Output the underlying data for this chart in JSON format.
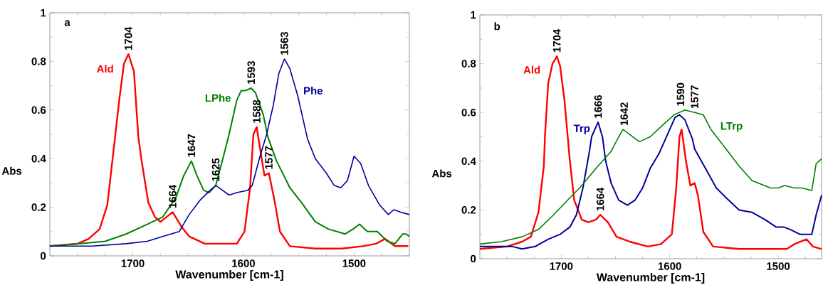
{
  "chart_data": [
    {
      "type": "line",
      "xlabel": "Wavenumber [cm-1]",
      "ylabel": "Abs",
      "xlim": [
        1775,
        1450
      ],
      "ylim": [
        0,
        1
      ],
      "xticks": [
        {
          "value": 1750,
          "label": null
        },
        {
          "value": 1725,
          "label": null
        },
        1700,
        {
          "value": 1675,
          "label": null
        },
        {
          "value": 1650,
          "label": null
        },
        {
          "value": 1625,
          "label": null
        },
        1600,
        {
          "value": 1575,
          "label": null
        },
        {
          "value": 1550,
          "label": null
        },
        {
          "value": 1525,
          "label": null
        },
        1500,
        {
          "value": 1475,
          "label": null
        }
      ],
      "yticks": [
        0,
        {
          "value": 0.1,
          "label": null
        },
        0.2,
        {
          "value": 0.3,
          "label": null
        },
        0.4,
        {
          "value": 0.5,
          "label": null
        },
        0.6,
        {
          "value": 0.7,
          "label": null
        },
        0.8,
        {
          "value": 0.9,
          "label": null
        },
        1
      ],
      "series": [
        {
          "name": "Ald",
          "color": "#ff0000",
          "x": [
            1775,
            1750,
            1740,
            1730,
            1723,
            1716,
            1712,
            1708,
            1704,
            1699,
            1695,
            1692,
            1686,
            1680,
            1675,
            1664,
            1656,
            1649,
            1635,
            1615,
            1606,
            1599,
            1594,
            1591,
            1588,
            1587,
            1581,
            1577,
            1572,
            1567,
            1558,
            1535,
            1511,
            1492,
            1480,
            1472,
            1463,
            1451
          ],
          "values": [
            0.04,
            0.05,
            0.07,
            0.11,
            0.21,
            0.49,
            0.65,
            0.79,
            0.83,
            0.76,
            0.49,
            0.39,
            0.22,
            0.16,
            0.14,
            0.18,
            0.12,
            0.08,
            0.05,
            0.05,
            0.05,
            0.1,
            0.28,
            0.5,
            0.53,
            0.5,
            0.33,
            0.34,
            0.23,
            0.1,
            0.04,
            0.03,
            0.03,
            0.04,
            0.05,
            0.07,
            0.04,
            0.04
          ]
        },
        {
          "name": "LPhe",
          "color": "#008000",
          "x": [
            1775,
            1749,
            1725,
            1706,
            1687,
            1673,
            1661,
            1654,
            1647,
            1642,
            1636,
            1631,
            1625,
            1618,
            1613,
            1611,
            1606,
            1602,
            1598,
            1593,
            1589,
            1582,
            1578,
            1570,
            1558,
            1546,
            1535,
            1523,
            1508,
            1501,
            1495,
            1488,
            1479,
            1470,
            1463,
            1456,
            1453,
            1450
          ],
          "values": [
            0.04,
            0.05,
            0.06,
            0.09,
            0.13,
            0.16,
            0.24,
            0.33,
            0.39,
            0.33,
            0.27,
            0.26,
            0.29,
            0.41,
            0.5,
            0.54,
            0.64,
            0.68,
            0.68,
            0.69,
            0.67,
            0.58,
            0.49,
            0.39,
            0.28,
            0.21,
            0.14,
            0.11,
            0.09,
            0.11,
            0.13,
            0.1,
            0.1,
            0.06,
            0.05,
            0.09,
            0.09,
            0.08
          ]
        },
        {
          "name": "Phe",
          "color": "#000099",
          "x": [
            1775,
            1737,
            1706,
            1687,
            1673,
            1658,
            1649,
            1639,
            1630,
            1625,
            1619,
            1613,
            1606,
            1596,
            1592,
            1585,
            1579,
            1573,
            1568,
            1563,
            1558,
            1551,
            1542,
            1535,
            1525,
            1518,
            1512,
            1506,
            1500,
            1494,
            1487,
            1477,
            1469,
            1464,
            1458,
            1450
          ],
          "values": [
            0.04,
            0.04,
            0.05,
            0.06,
            0.08,
            0.1,
            0.17,
            0.23,
            0.27,
            0.29,
            0.27,
            0.25,
            0.26,
            0.27,
            0.29,
            0.41,
            0.5,
            0.62,
            0.75,
            0.81,
            0.77,
            0.66,
            0.48,
            0.4,
            0.34,
            0.29,
            0.28,
            0.31,
            0.41,
            0.38,
            0.29,
            0.21,
            0.17,
            0.19,
            0.18,
            0.17
          ]
        }
      ],
      "annotations": [
        "a",
        {
          "text": "1704",
          "x": 1704,
          "y": 0.83
        },
        {
          "text": "1664",
          "x": 1664,
          "y": 0.18
        },
        {
          "text": "1647",
          "x": 1647,
          "y": 0.39
        },
        {
          "text": "1625",
          "x": 1625,
          "y": 0.29
        },
        {
          "text": "1593",
          "x": 1593,
          "y": 0.69
        },
        {
          "text": "1588",
          "x": 1588,
          "y": 0.53
        },
        {
          "text": "1577",
          "x": 1577,
          "y": 0.34
        },
        {
          "text": "1563",
          "x": 1563,
          "y": 0.81
        }
      ]
    },
    {
      "type": "line",
      "xlabel": "Wavenumber [cm-1]",
      "ylabel": "Abs",
      "xlim": [
        1775,
        1460
      ],
      "ylim": [
        0,
        1
      ],
      "xticks": [
        {
          "value": 1750,
          "label": null
        },
        {
          "value": 1725,
          "label": null
        },
        1700,
        {
          "value": 1675,
          "label": null
        },
        {
          "value": 1650,
          "label": null
        },
        {
          "value": 1625,
          "label": null
        },
        1600,
        {
          "value": 1575,
          "label": null
        },
        {
          "value": 1550,
          "label": null
        },
        {
          "value": 1525,
          "label": null
        },
        1500,
        {
          "value": 1475,
          "label": null
        }
      ],
      "yticks": [
        0,
        {
          "value": 0.1,
          "label": null
        },
        0.2,
        {
          "value": 0.3,
          "label": null
        },
        0.4,
        {
          "value": 0.5,
          "label": null
        },
        0.6,
        {
          "value": 0.7,
          "label": null
        },
        0.8,
        {
          "value": 0.9,
          "label": null
        },
        1
      ],
      "series": [
        {
          "name": "Ald",
          "color": "#ff0000",
          "x": [
            1775,
            1750,
            1736,
            1728,
            1721,
            1716,
            1715,
            1712,
            1708,
            1704,
            1701,
            1697,
            1694,
            1692,
            1688,
            1681,
            1675,
            1668,
            1664,
            1657,
            1649,
            1637,
            1620,
            1608,
            1598,
            1594,
            1591,
            1589,
            1585,
            1581,
            1577,
            1574,
            1569,
            1560,
            1536,
            1512,
            1492,
            1485,
            1474,
            1468,
            1460
          ],
          "values": [
            0.04,
            0.05,
            0.07,
            0.09,
            0.19,
            0.38,
            0.5,
            0.72,
            0.8,
            0.83,
            0.79,
            0.65,
            0.5,
            0.4,
            0.24,
            0.16,
            0.15,
            0.16,
            0.18,
            0.15,
            0.09,
            0.07,
            0.05,
            0.06,
            0.1,
            0.29,
            0.5,
            0.53,
            0.4,
            0.3,
            0.31,
            0.26,
            0.11,
            0.05,
            0.04,
            0.04,
            0.04,
            0.06,
            0.08,
            0.05,
            0.04
          ]
        },
        {
          "name": "Trp",
          "color": "#000099",
          "x": [
            1775,
            1745,
            1736,
            1724,
            1712,
            1701,
            1692,
            1686,
            1680,
            1674,
            1672,
            1666,
            1662,
            1659,
            1654,
            1647,
            1639,
            1632,
            1625,
            1618,
            1610,
            1606,
            1601,
            1595,
            1591,
            1586,
            1579,
            1577,
            1567,
            1557,
            1548,
            1536,
            1524,
            1512,
            1502,
            1495,
            1489,
            1480,
            1469,
            1465,
            1460
          ],
          "values": [
            0.05,
            0.05,
            0.04,
            0.05,
            0.08,
            0.1,
            0.13,
            0.18,
            0.29,
            0.44,
            0.5,
            0.56,
            0.5,
            0.4,
            0.31,
            0.24,
            0.22,
            0.24,
            0.29,
            0.37,
            0.43,
            0.47,
            0.52,
            0.58,
            0.59,
            0.57,
            0.49,
            0.45,
            0.37,
            0.29,
            0.25,
            0.2,
            0.19,
            0.16,
            0.13,
            0.13,
            0.12,
            0.1,
            0.1,
            0.18,
            0.26
          ]
        },
        {
          "name": "LTrp",
          "color": "#008000",
          "x": [
            1775,
            1755,
            1736,
            1721,
            1707,
            1692,
            1683,
            1668,
            1654,
            1647,
            1643,
            1637,
            1628,
            1618,
            1606,
            1596,
            1586,
            1577,
            1569,
            1562,
            1555,
            1548,
            1536,
            1524,
            1507,
            1500,
            1494,
            1485,
            1478,
            1469,
            1465,
            1460
          ],
          "values": [
            0.06,
            0.07,
            0.09,
            0.12,
            0.18,
            0.25,
            0.29,
            0.37,
            0.44,
            0.5,
            0.53,
            0.51,
            0.48,
            0.5,
            0.55,
            0.59,
            0.61,
            0.6,
            0.59,
            0.53,
            0.49,
            0.45,
            0.38,
            0.32,
            0.29,
            0.29,
            0.3,
            0.29,
            0.29,
            0.28,
            0.39,
            0.41
          ]
        }
      ],
      "annotations": [
        "b",
        {
          "text": "1704",
          "x": 1704,
          "y": 0.83
        },
        {
          "text": "1666",
          "x": 1666,
          "y": 0.56
        },
        {
          "text": "1642",
          "x": 1642,
          "y": 0.53
        },
        {
          "text": "1590",
          "x": 1590,
          "y": 0.61
        },
        {
          "text": "1577",
          "x": 1577,
          "y": 0.6
        },
        {
          "text": "1664",
          "x": 1664,
          "y": 0.18
        }
      ]
    }
  ]
}
